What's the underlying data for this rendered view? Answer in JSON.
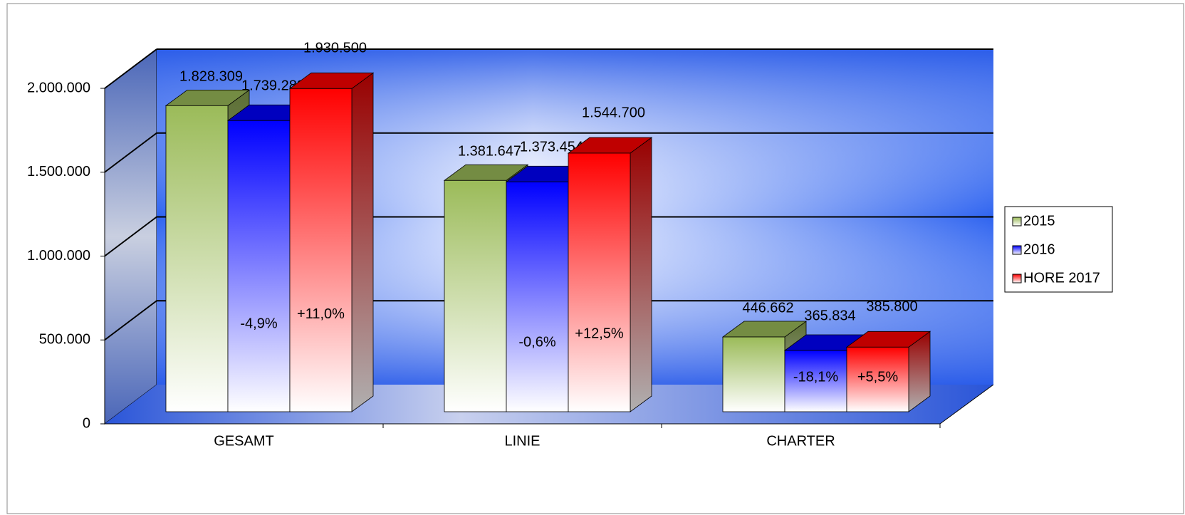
{
  "chart_data": {
    "type": "bar3d",
    "categories": [
      "GESAMT",
      "LINIE",
      "CHARTER"
    ],
    "series": [
      {
        "name": "2015",
        "color": "#9bbb59",
        "values": [
          1828309,
          1381647,
          446662
        ],
        "value_labels": [
          "1.828.309",
          "1.381.647",
          "446.662"
        ]
      },
      {
        "name": "2016",
        "color": "#0000ff",
        "values": [
          1739288,
          1373454,
          365834
        ],
        "value_labels": [
          "1.739.288",
          "1.373.454",
          "365.834"
        ],
        "change_labels": [
          "-4,9%",
          "-0,6%",
          "-18,1%"
        ]
      },
      {
        "name": "HORE 2017",
        "color": "#ff0000",
        "values": [
          1930500,
          1544700,
          385800
        ],
        "value_labels": [
          "1.930.500",
          "1.544.700",
          "385.800"
        ],
        "change_labels": [
          "+11,0%",
          "+12,5%",
          "+5,5%"
        ]
      }
    ],
    "ylim": [
      0,
      2000000
    ],
    "yticks": [
      0,
      {
        "value": 500000,
        "label": "500.000"
      },
      {
        "value": 1000000,
        "label": "1.000.000"
      },
      {
        "value": 1500000,
        "label": "1.500.000"
      },
      {
        "value": 2000000,
        "label": "2.000.000"
      }
    ],
    "grid": true,
    "legend": "right"
  }
}
